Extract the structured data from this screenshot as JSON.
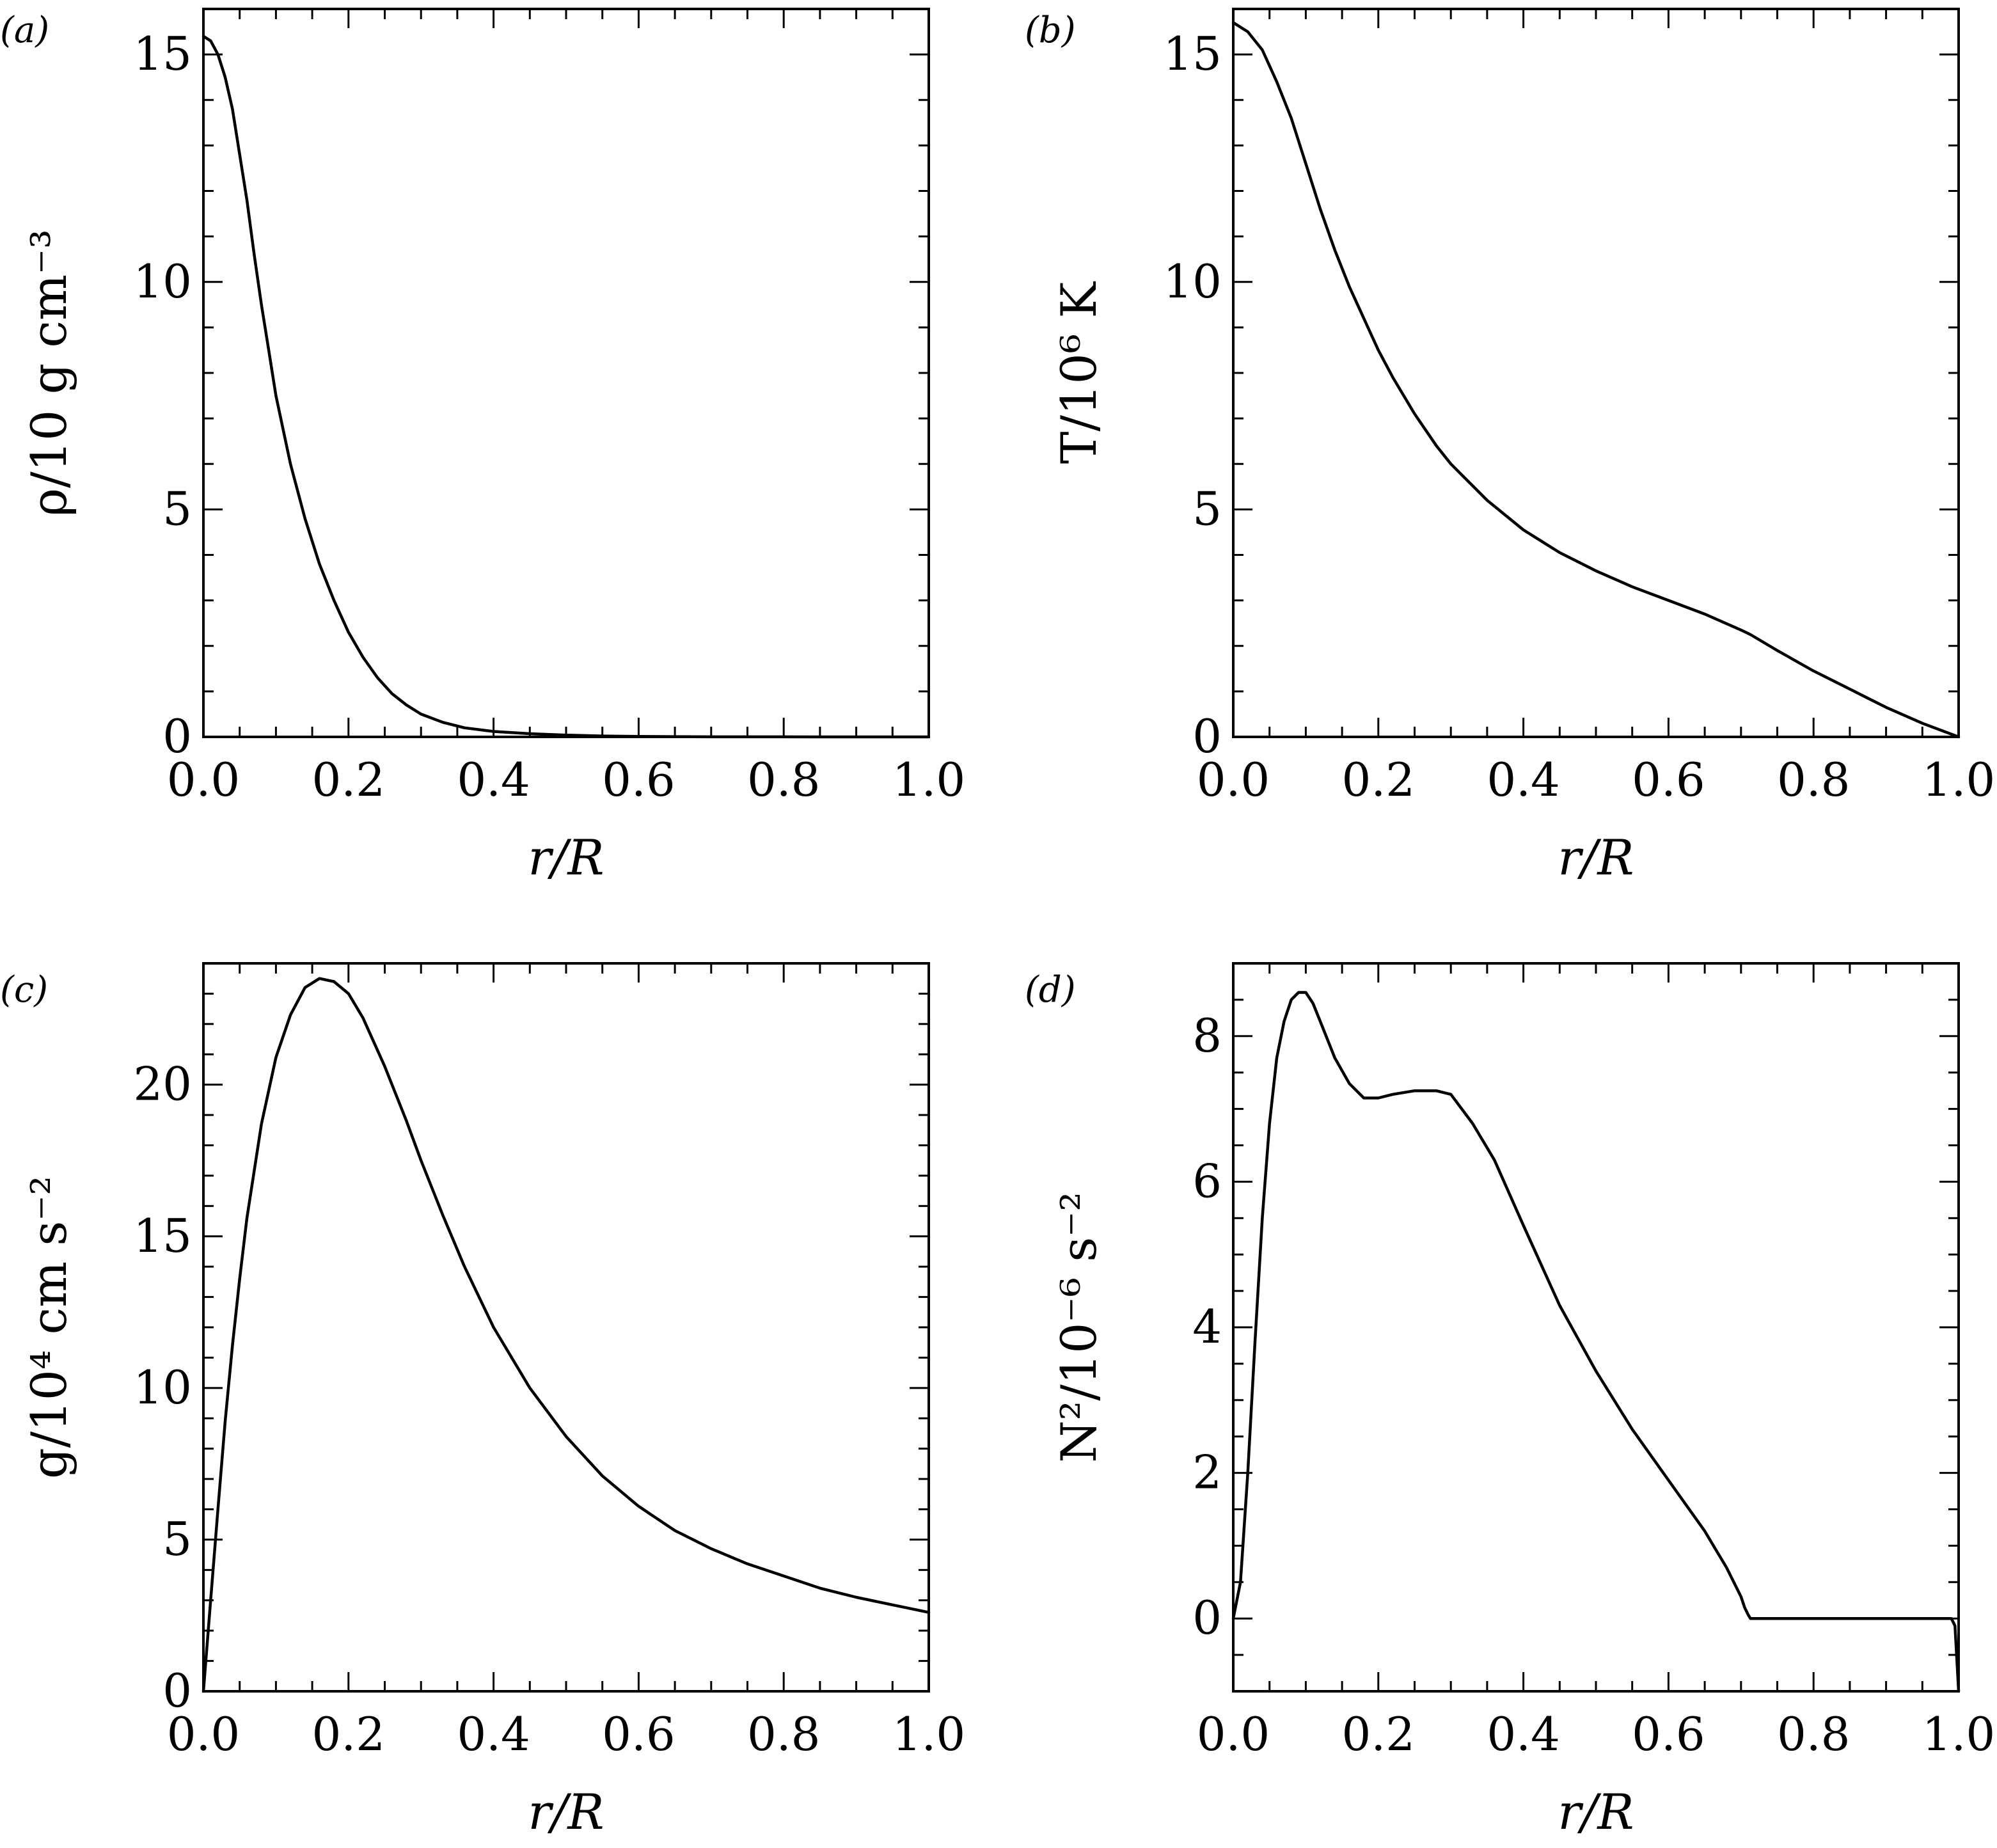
{
  "chart_data": [
    {
      "id": "a",
      "type": "line",
      "panel_label": "(a)",
      "xlabel": "r/R",
      "ylabel": "ρ/10 g cm⁻³",
      "xlim": [
        0,
        1
      ],
      "ylim": [
        0,
        16
      ],
      "xticks": [
        0,
        0.2,
        0.4,
        0.6,
        0.8,
        1
      ],
      "xtick_labels": [
        "0.0",
        "0.2",
        "0.4",
        "0.6",
        "0.8",
        "1.0"
      ],
      "yticks": [
        0,
        5,
        10,
        15
      ],
      "ytick_labels": [
        "0",
        "5",
        "10",
        "15"
      ],
      "x_minor_step": 0.05,
      "y_minor_step": 1,
      "grid": false,
      "series": [
        {
          "x": [
            0,
            0.01,
            0.02,
            0.03,
            0.04,
            0.05,
            0.06,
            0.07,
            0.08,
            0.09,
            0.1,
            0.12,
            0.14,
            0.16,
            0.18,
            0.2,
            0.22,
            0.24,
            0.26,
            0.28,
            0.3,
            0.33,
            0.36,
            0.4,
            0.45,
            0.5,
            0.55,
            0.6,
            0.65,
            0.7,
            0.8,
            0.9,
            1.0
          ],
          "y": [
            15.4,
            15.3,
            15.0,
            14.5,
            13.8,
            12.8,
            11.8,
            10.6,
            9.5,
            8.5,
            7.5,
            6.0,
            4.8,
            3.8,
            3.0,
            2.3,
            1.75,
            1.3,
            0.95,
            0.7,
            0.5,
            0.32,
            0.2,
            0.12,
            0.07,
            0.04,
            0.02,
            0.01,
            0.005,
            0.002,
            0.001,
            0.0005,
            0
          ]
        }
      ]
    },
    {
      "id": "b",
      "type": "line",
      "panel_label": "(b)",
      "xlabel": "r/R",
      "ylabel": "T/10⁶ K",
      "xlim": [
        0,
        1
      ],
      "ylim": [
        0,
        16
      ],
      "xticks": [
        0,
        0.2,
        0.4,
        0.6,
        0.8,
        1
      ],
      "xtick_labels": [
        "0.0",
        "0.2",
        "0.4",
        "0.6",
        "0.8",
        "1.0"
      ],
      "yticks": [
        0,
        5,
        10,
        15
      ],
      "ytick_labels": [
        "0",
        "5",
        "10",
        "15"
      ],
      "x_minor_step": 0.05,
      "y_minor_step": 1,
      "grid": false,
      "series": [
        {
          "x": [
            0,
            0.02,
            0.04,
            0.06,
            0.08,
            0.1,
            0.12,
            0.14,
            0.16,
            0.18,
            0.2,
            0.22,
            0.25,
            0.28,
            0.3,
            0.35,
            0.4,
            0.45,
            0.5,
            0.55,
            0.6,
            0.65,
            0.7,
            0.713,
            0.75,
            0.8,
            0.85,
            0.9,
            0.95,
            1.0
          ],
          "y": [
            15.7,
            15.5,
            15.1,
            14.4,
            13.6,
            12.6,
            11.6,
            10.7,
            9.9,
            9.2,
            8.5,
            7.9,
            7.1,
            6.4,
            6.0,
            5.2,
            4.55,
            4.05,
            3.65,
            3.3,
            3.0,
            2.7,
            2.35,
            2.25,
            1.9,
            1.45,
            1.05,
            0.65,
            0.3,
            0
          ]
        }
      ]
    },
    {
      "id": "c",
      "type": "line",
      "panel_label": "(c)",
      "xlabel": "r/R",
      "ylabel": "g/10⁴ cm s⁻²",
      "xlim": [
        0,
        1
      ],
      "ylim": [
        0,
        24
      ],
      "xticks": [
        0,
        0.2,
        0.4,
        0.6,
        0.8,
        1
      ],
      "xtick_labels": [
        "0.0",
        "0.2",
        "0.4",
        "0.6",
        "0.8",
        "1.0"
      ],
      "yticks": [
        0,
        5,
        10,
        15,
        20
      ],
      "ytick_labels": [
        "0",
        "5",
        "10",
        "15",
        "20"
      ],
      "x_minor_step": 0.05,
      "y_minor_step": 1,
      "grid": false,
      "series": [
        {
          "x": [
            0,
            0.01,
            0.02,
            0.03,
            0.04,
            0.05,
            0.06,
            0.08,
            0.1,
            0.12,
            0.14,
            0.16,
            0.18,
            0.2,
            0.22,
            0.25,
            0.28,
            0.3,
            0.33,
            0.36,
            0.4,
            0.45,
            0.5,
            0.55,
            0.6,
            0.65,
            0.7,
            0.75,
            0.8,
            0.85,
            0.9,
            0.95,
            1.0
          ],
          "y": [
            0,
            3.0,
            6.0,
            8.9,
            11.4,
            13.6,
            15.6,
            18.7,
            20.9,
            22.3,
            23.2,
            23.5,
            23.4,
            23.0,
            22.2,
            20.6,
            18.8,
            17.5,
            15.7,
            14.0,
            12.0,
            10.0,
            8.4,
            7.1,
            6.1,
            5.3,
            4.7,
            4.2,
            3.8,
            3.4,
            3.1,
            2.85,
            2.6
          ]
        }
      ]
    },
    {
      "id": "d",
      "type": "line",
      "panel_label": "(d)",
      "xlabel": "r/R",
      "ylabel": "N²/10⁻⁶ s⁻²",
      "xlim": [
        0,
        1
      ],
      "ylim": [
        -1,
        9
      ],
      "xticks": [
        0,
        0.2,
        0.4,
        0.6,
        0.8,
        1
      ],
      "xtick_labels": [
        "0.0",
        "0.2",
        "0.4",
        "0.6",
        "0.8",
        "1.0"
      ],
      "yticks": [
        0,
        2,
        4,
        6,
        8
      ],
      "ytick_labels": [
        "0",
        "2",
        "4",
        "6",
        "8"
      ],
      "x_minor_step": 0.05,
      "y_minor_step": 0.5,
      "grid": false,
      "series": [
        {
          "x": [
            0,
            0.01,
            0.02,
            0.03,
            0.04,
            0.05,
            0.06,
            0.07,
            0.08,
            0.09,
            0.1,
            0.11,
            0.12,
            0.14,
            0.16,
            0.18,
            0.2,
            0.22,
            0.25,
            0.28,
            0.3,
            0.33,
            0.36,
            0.4,
            0.45,
            0.5,
            0.55,
            0.6,
            0.65,
            0.68,
            0.7,
            0.705,
            0.71,
            0.713,
            0.72,
            0.8,
            0.9,
            0.99,
            0.995,
            1.0
          ],
          "y": [
            0,
            0.5,
            2.0,
            3.8,
            5.5,
            6.8,
            7.7,
            8.2,
            8.5,
            8.6,
            8.6,
            8.45,
            8.2,
            7.7,
            7.35,
            7.15,
            7.15,
            7.2,
            7.25,
            7.25,
            7.2,
            6.8,
            6.3,
            5.4,
            4.3,
            3.4,
            2.6,
            1.9,
            1.2,
            0.7,
            0.3,
            0.15,
            0.05,
            0,
            0,
            0,
            0,
            0,
            -0.1,
            -1.0
          ]
        }
      ]
    }
  ]
}
